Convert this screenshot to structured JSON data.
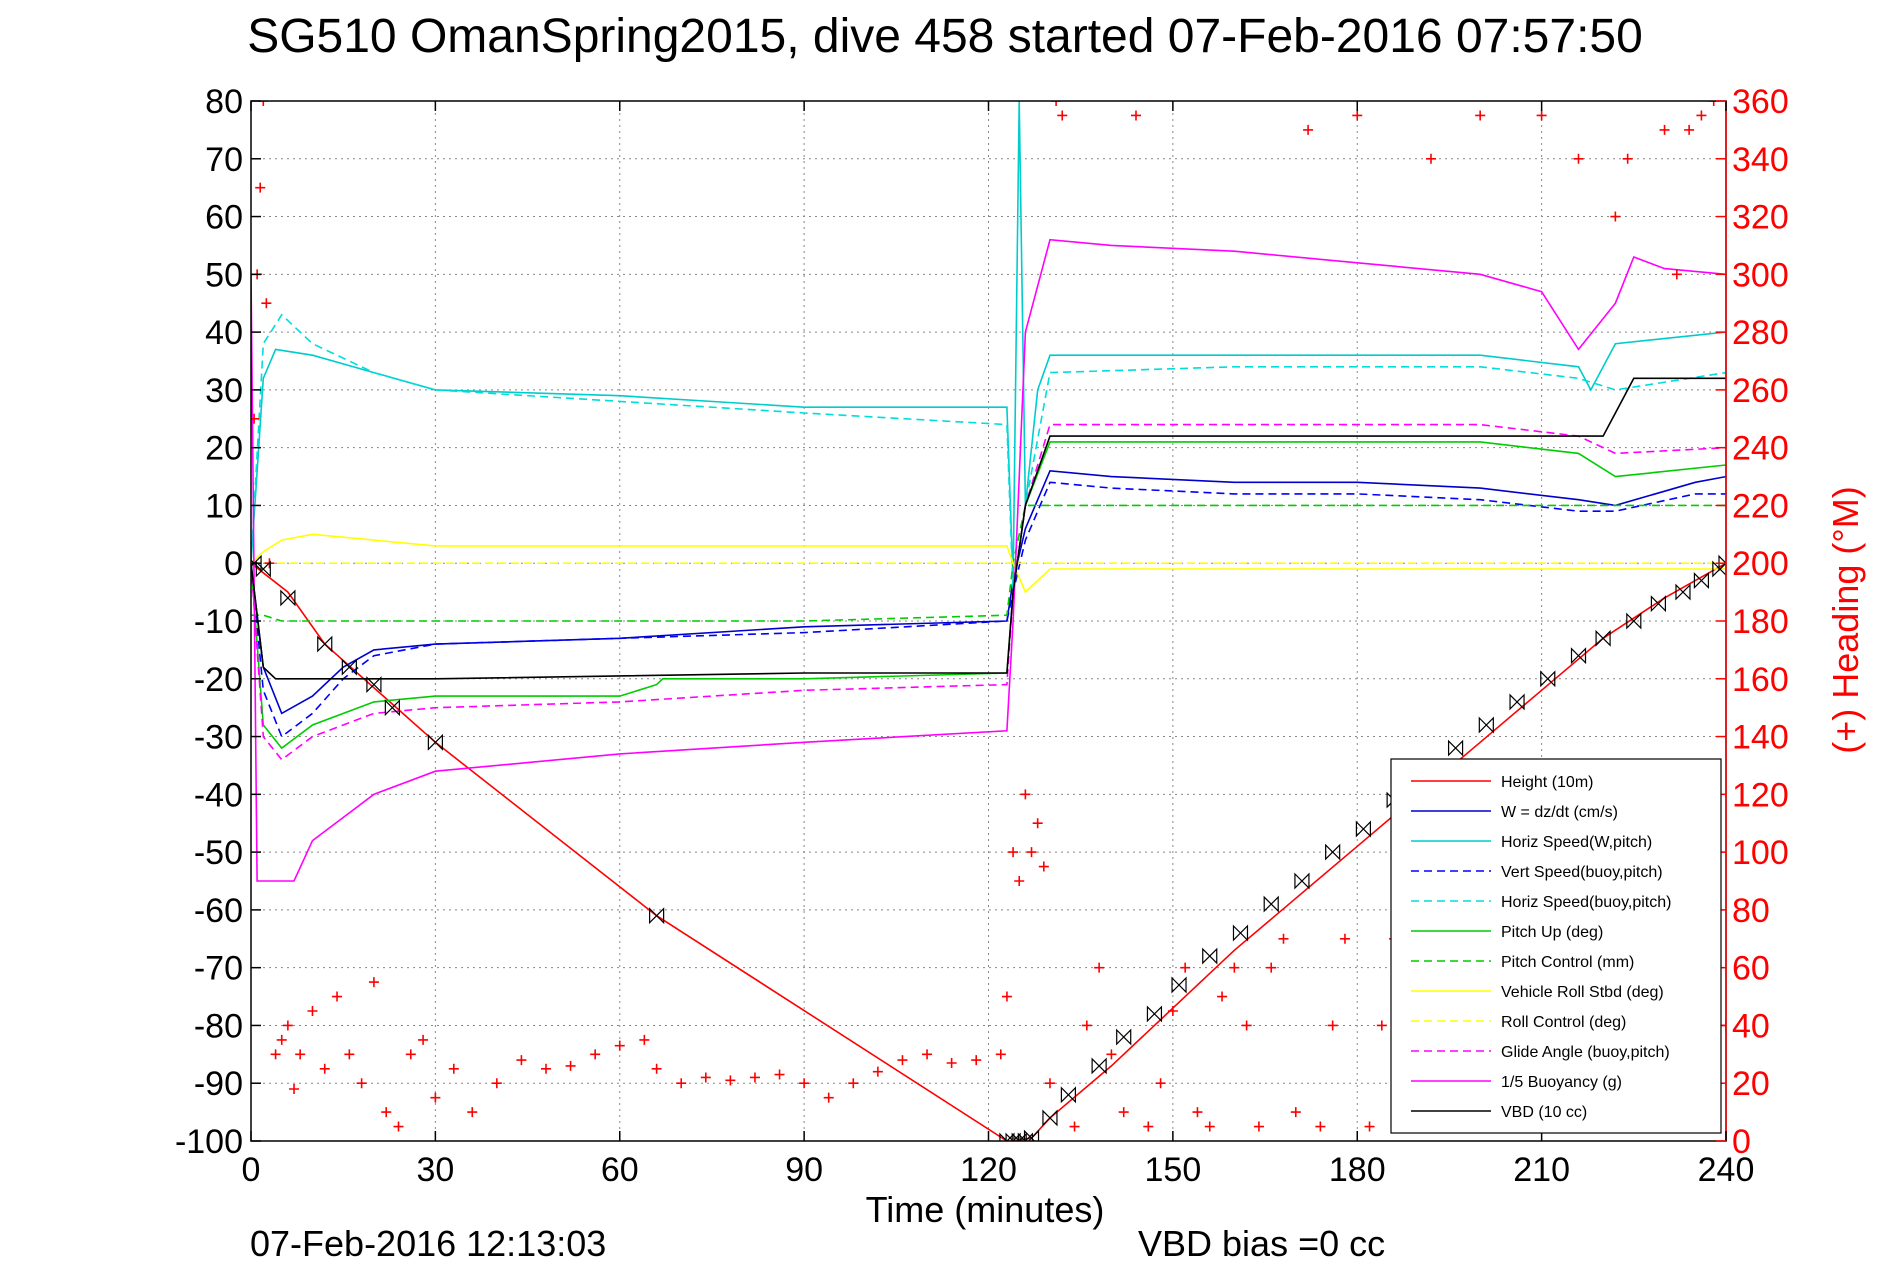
{
  "chart_data": {
    "type": "line",
    "title": "SG510 OmanSpring2015, dive 458 started 07-Feb-2016 07:57:50",
    "xlabel": "Time (minutes)",
    "ylabel": "",
    "y2label": "(+) Heading (°M)",
    "xlim": [
      0,
      240
    ],
    "ylim": [
      -100,
      80
    ],
    "y2lim": [
      0,
      360
    ],
    "xticks": [
      "0",
      "30",
      "60",
      "90",
      "120",
      "150",
      "180",
      "210",
      "240"
    ],
    "yticks": [
      "80",
      "70",
      "60",
      "50",
      "40",
      "30",
      "20",
      "10",
      "0",
      "-10",
      "-20",
      "-30",
      "-40",
      "-50",
      "-60",
      "-70",
      "-80",
      "-90",
      "-100"
    ],
    "y2ticks": [
      "360",
      "340",
      "320",
      "300",
      "280",
      "260",
      "240",
      "220",
      "200",
      "180",
      "160",
      "140",
      "120",
      "100",
      "80",
      "60",
      "40",
      "20",
      "0"
    ],
    "grid": true,
    "legend_position": "bottom-right",
    "footer_left": "07-Feb-2016 12:13:03",
    "footer_right": "VBD bias =0 cc",
    "series": [
      {
        "name": "Height (10m)",
        "color": "#ff0000",
        "style": "solid",
        "x": [
          0,
          6,
          12,
          30,
          66,
          123,
          124,
          127,
          130,
          140,
          150,
          160,
          170,
          180,
          190,
          200,
          210,
          220,
          230,
          240
        ],
        "y": [
          0,
          -5,
          -14,
          -31,
          -61,
          -100,
          -100,
          -99.5,
          -96,
          -87,
          -77,
          -67,
          -58,
          -49,
          -40,
          -31,
          -22,
          -13,
          -6,
          0
        ]
      },
      {
        "name": "W = dz/dt (cm/s)",
        "color": "#0000cc",
        "style": "solid",
        "x": [
          0,
          2,
          5,
          10,
          15,
          20,
          30,
          60,
          90,
          123,
          124,
          126,
          130,
          140,
          160,
          180,
          200,
          216,
          222,
          235,
          240
        ],
        "y": [
          0,
          -18,
          -26,
          -23,
          -18,
          -15,
          -14,
          -13,
          -11,
          -10,
          -3,
          6,
          16,
          15,
          14,
          14,
          13,
          11,
          10,
          14,
          15
        ]
      },
      {
        "name": "Horiz Speed(W,pitch)",
        "color": "#00cccc",
        "style": "solid",
        "x": [
          0,
          2,
          4,
          10,
          20,
          30,
          60,
          90,
          123,
          124,
          125,
          126,
          128,
          130,
          160,
          200,
          216,
          218,
          222,
          240
        ],
        "y": [
          0,
          32,
          37,
          36,
          33,
          30,
          29,
          27,
          27,
          -3,
          80,
          10,
          30,
          36,
          36,
          36,
          34,
          30,
          38,
          40
        ]
      },
      {
        "name": "Vert Speed(buoy,pitch)",
        "color": "#0000ff",
        "style": "dashed",
        "x": [
          0,
          2,
          5,
          10,
          15,
          20,
          30,
          60,
          90,
          123,
          124,
          126,
          130,
          140,
          160,
          180,
          200,
          216,
          222,
          235,
          240
        ],
        "y": [
          0,
          -22,
          -30,
          -26,
          -20,
          -16,
          -14,
          -13,
          -12,
          -10,
          -5,
          4,
          14,
          13,
          12,
          12,
          11,
          9,
          9,
          12,
          12
        ]
      },
      {
        "name": "Horiz Speed(buoy,pitch)",
        "color": "#00dddd",
        "style": "dashed",
        "x": [
          0,
          2,
          5,
          10,
          20,
          30,
          60,
          90,
          123,
          124,
          126,
          130,
          160,
          200,
          216,
          222,
          240
        ],
        "y": [
          0,
          38,
          43,
          38,
          33,
          30,
          28,
          26,
          24,
          -5,
          10,
          33,
          34,
          34,
          32,
          30,
          33
        ]
      },
      {
        "name": "Pitch Up (deg)",
        "color": "#00cc00",
        "style": "solid",
        "x": [
          0,
          2,
          5,
          10,
          20,
          30,
          60,
          66,
          67,
          90,
          123,
          124,
          126,
          130,
          160,
          200,
          216,
          222,
          240
        ],
        "y": [
          0,
          -28,
          -32,
          -28,
          -24,
          -23,
          -23,
          -21,
          -20,
          -20,
          -19,
          -5,
          10,
          21,
          21,
          21,
          19,
          15,
          17
        ]
      },
      {
        "name": "Pitch Control (mm)",
        "color": "#00cc00",
        "style": "dashed",
        "x": [
          0,
          1,
          2,
          5,
          30,
          60,
          90,
          123,
          124,
          126,
          130,
          160,
          200,
          216,
          222,
          240
        ],
        "y": [
          -9,
          -9,
          -9,
          -10,
          -10,
          -10,
          -10,
          -9,
          0,
          10,
          10,
          10,
          10,
          10,
          10,
          10
        ]
      },
      {
        "name": "Vehicle Roll Stbd (deg)",
        "color": "#ffff00",
        "style": "solid",
        "x": [
          0,
          2,
          5,
          10,
          20,
          30,
          60,
          90,
          123,
          124,
          126,
          130,
          160,
          200,
          240
        ],
        "y": [
          0,
          2,
          4,
          5,
          4,
          3,
          3,
          3,
          3,
          0,
          -5,
          -1,
          -1,
          -1,
          -1
        ]
      },
      {
        "name": "Roll Control (deg)",
        "color": "#ffff00",
        "style": "dashed",
        "x": [
          0,
          30,
          60,
          90,
          123,
          124,
          130,
          160,
          200,
          240
        ],
        "y": [
          0,
          0,
          0,
          0,
          0,
          0,
          0,
          0,
          0,
          0
        ]
      },
      {
        "name": "Glide Angle (buoy,pitch)",
        "color": "#ff00ff",
        "style": "dashed",
        "x": [
          0,
          2,
          5,
          10,
          20,
          30,
          60,
          90,
          123,
          124,
          126,
          130,
          160,
          200,
          216,
          222,
          240
        ],
        "y": [
          0,
          -30,
          -34,
          -30,
          -26,
          -25,
          -24,
          -22,
          -21,
          -5,
          10,
          24,
          24,
          24,
          22,
          19,
          20
        ]
      },
      {
        "name": "1/5 Buoyancy (g)",
        "color": "#ff00ff",
        "style": "solid",
        "x": [
          0,
          1,
          2,
          7,
          10,
          20,
          30,
          60,
          90,
          123,
          124,
          126,
          130,
          140,
          160,
          180,
          200,
          210,
          216,
          222,
          225,
          230,
          240
        ],
        "y": [
          50,
          -55,
          -55,
          -55,
          -48,
          -40,
          -36,
          -33,
          -31,
          -29,
          -10,
          40,
          56,
          55,
          54,
          52,
          50,
          47,
          37,
          45,
          53,
          51,
          50
        ]
      },
      {
        "name": "VBD (10 cc)",
        "color": "#000000",
        "style": "solid",
        "x": [
          0,
          2,
          4,
          10,
          30,
          60,
          90,
          123,
          124,
          126,
          130,
          160,
          200,
          220,
          222,
          225,
          240
        ],
        "y": [
          0,
          -18,
          -20,
          -20,
          -20,
          -19.5,
          -19,
          -19,
          -5,
          10,
          22,
          22,
          22,
          22,
          26,
          32,
          32
        ]
      }
    ],
    "heading": {
      "name": "(+) Heading",
      "axis": "right",
      "color": "#ff0000",
      "marker": "+",
      "x": [
        0.5,
        1,
        1.5,
        2,
        2.5,
        3,
        4,
        5,
        6,
        7,
        8,
        10,
        12,
        14,
        16,
        18,
        20,
        22,
        24,
        26,
        28,
        30,
        33,
        36,
        40,
        44,
        48,
        52,
        56,
        60,
        64,
        66,
        70,
        74,
        78,
        82,
        86,
        90,
        94,
        98,
        102,
        106,
        110,
        114,
        118,
        122,
        123,
        124,
        125,
        126,
        127,
        128,
        129,
        130,
        131,
        132,
        134,
        136,
        138,
        140,
        142,
        144,
        146,
        148,
        150,
        152,
        154,
        156,
        158,
        160,
        162,
        164,
        166,
        168,
        170,
        172,
        174,
        176,
        178,
        180,
        182,
        184,
        186,
        188,
        190,
        192,
        194,
        196,
        198,
        200,
        202,
        204,
        206,
        208,
        210,
        212,
        214,
        216,
        218,
        220,
        222,
        224,
        226,
        228,
        230,
        232,
        234,
        236,
        238,
        240
      ],
      "y": [
        250,
        300,
        330,
        360,
        290,
        200,
        30,
        35,
        40,
        18,
        30,
        45,
        25,
        50,
        30,
        20,
        55,
        10,
        5,
        30,
        35,
        15,
        25,
        10,
        20,
        28,
        25,
        26,
        30,
        33,
        35,
        25,
        20,
        22,
        21,
        22,
        23,
        20,
        15,
        20,
        24,
        28,
        30,
        27,
        28,
        30,
        50,
        100,
        90,
        120,
        100,
        110,
        95,
        20,
        360,
        355,
        5,
        40,
        60,
        30,
        10,
        355,
        5,
        20,
        45,
        60,
        10,
        5,
        50,
        60,
        40,
        5,
        60,
        70,
        10,
        350,
        5,
        40,
        70,
        355,
        5,
        40,
        70,
        15,
        10,
        340,
        40,
        60,
        20,
        355,
        10,
        65,
        30,
        10,
        355,
        15,
        50,
        340,
        30,
        5,
        320,
        340,
        50,
        30,
        350,
        300,
        350,
        355,
        360,
        40
      ]
    },
    "markers": {
      "symbol": "bowtie",
      "color": "#000000",
      "x": [
        0.5,
        2,
        6,
        12,
        16,
        20,
        23,
        30,
        66,
        123,
        124,
        125,
        126,
        127,
        130,
        133,
        138,
        142,
        147,
        151,
        156,
        161,
        166,
        171,
        176,
        181,
        186,
        191,
        196,
        201,
        206,
        211,
        216,
        220,
        225,
        229,
        233,
        236,
        239,
        240
      ],
      "y": [
        0,
        -1,
        -6,
        -14,
        -18,
        -21,
        -25,
        -31,
        -61,
        -100,
        -100,
        -100,
        -100,
        -99.5,
        -96,
        -92,
        -87,
        -82,
        -78,
        -73,
        -68,
        -64,
        -59,
        -55,
        -50,
        -46,
        -41,
        -37,
        -32,
        -28,
        -24,
        -20,
        -16,
        -13,
        -10,
        -7,
        -5,
        -3,
        -1,
        0
      ]
    }
  }
}
